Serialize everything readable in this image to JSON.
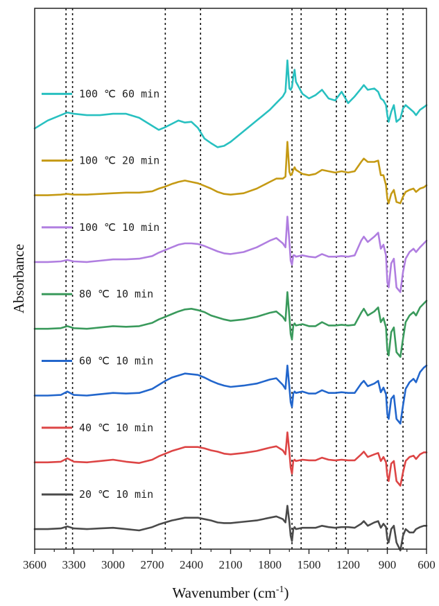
{
  "chart_data": {
    "type": "line",
    "title": "",
    "xlabel": "Wavenumber (cm",
    "xlabel_sup": "-1",
    "xlabel_close": ")",
    "ylabel": "Absorbance",
    "x_reversed": true,
    "xlim": [
      3600,
      600
    ],
    "ylim": [
      -0.3,
      7.8
    ],
    "y_ticks_shown": false,
    "grid": false,
    "legend_placement": "inline-left",
    "x_ticks": [
      3600,
      3300,
      3000,
      2700,
      2400,
      2100,
      1800,
      1500,
      1200,
      900,
      600
    ],
    "x_tick_labels": [
      "3600",
      "3300",
      "3000",
      "2700",
      "2400",
      "2100",
      "1800",
      "1500",
      "1200",
      "900",
      "600"
    ],
    "reference_lines": [
      3360,
      3310,
      2600,
      2330,
      1630,
      1560,
      1290,
      1220,
      900,
      780
    ],
    "x": [
      3600,
      3500,
      3400,
      3350,
      3300,
      3200,
      3100,
      3000,
      2900,
      2800,
      2700,
      2650,
      2600,
      2550,
      2500,
      2450,
      2400,
      2350,
      2300,
      2250,
      2200,
      2150,
      2100,
      2000,
      1900,
      1800,
      1750,
      1700,
      1680,
      1665,
      1650,
      1640,
      1630,
      1620,
      1610,
      1600,
      1550,
      1500,
      1450,
      1400,
      1350,
      1300,
      1250,
      1200,
      1150,
      1100,
      1080,
      1050,
      1000,
      970,
      950,
      930,
      910,
      900,
      890,
      870,
      850,
      830,
      800,
      780,
      760,
      730,
      700,
      680,
      650,
      620,
      600
    ],
    "series": [
      {
        "name": "20 ℃ 10 min",
        "color": "#4a4a4a",
        "values": [
          0,
          0,
          0.01,
          0.04,
          0.01,
          0,
          0.01,
          0.02,
          0,
          -0.02,
          0.03,
          0.07,
          0.1,
          0.13,
          0.15,
          0.17,
          0.17,
          0.17,
          0.15,
          0.13,
          0.1,
          0.09,
          0.09,
          0.11,
          0.13,
          0.17,
          0.19,
          0.15,
          0.1,
          0.35,
          0.1,
          -0.1,
          -0.18,
          0,
          0.03,
          0,
          0.02,
          0.02,
          0.02,
          0.05,
          0.03,
          0.02,
          0.03,
          0.03,
          0.02,
          0.08,
          0.12,
          0.05,
          0.1,
          0.12,
          0.02,
          0.08,
          0.03,
          -0.15,
          -0.2,
          0,
          0.05,
          -0.2,
          -0.32,
          -0.1,
          0,
          -0.05,
          -0.05,
          0,
          0.03,
          0.05,
          0.05
        ]
      },
      {
        "name": "40 ℃ 10 min",
        "color": "#dd4545",
        "values": [
          1,
          1,
          1.01,
          1.06,
          1.01,
          1,
          1.02,
          1.04,
          1.01,
          0.99,
          1.04,
          1.09,
          1.13,
          1.17,
          1.2,
          1.23,
          1.23,
          1.23,
          1.21,
          1.18,
          1.16,
          1.13,
          1.12,
          1.14,
          1.17,
          1.22,
          1.24,
          1.18,
          1.12,
          1.45,
          1.15,
          0.92,
          0.83,
          1.02,
          1.04,
          1.02,
          1.04,
          1.03,
          1.03,
          1.07,
          1.04,
          1.03,
          1.04,
          1.03,
          1.03,
          1.12,
          1.16,
          1.08,
          1.12,
          1.14,
          1.02,
          1.08,
          1,
          0.8,
          0.72,
          0.98,
          1.02,
          0.72,
          0.65,
          0.85,
          1.02,
          1.08,
          1.1,
          1.05,
          1.12,
          1.15,
          1.15
        ]
      },
      {
        "name": "60 ℃ 10 min",
        "color": "#2266cc",
        "values": [
          2,
          2,
          2.01,
          2.06,
          2.01,
          2,
          2.02,
          2.04,
          2.03,
          2.04,
          2.1,
          2.16,
          2.22,
          2.27,
          2.3,
          2.33,
          2.32,
          2.31,
          2.27,
          2.22,
          2.18,
          2.15,
          2.13,
          2.15,
          2.18,
          2.24,
          2.26,
          2.16,
          2.1,
          2.45,
          2.12,
          1.9,
          1.83,
          2.03,
          2.06,
          2.04,
          2.06,
          2.03,
          2.03,
          2.08,
          2.04,
          2.04,
          2.05,
          2.04,
          2.04,
          2.18,
          2.22,
          2.14,
          2.18,
          2.22,
          2.05,
          2.12,
          2.02,
          1.72,
          1.65,
          1.95,
          2,
          1.65,
          1.58,
          1.85,
          2.1,
          2.2,
          2.25,
          2.2,
          2.35,
          2.42,
          2.45
        ]
      },
      {
        "name": "80 ℃ 10 min",
        "color": "#3a9a5c",
        "values": [
          3,
          3,
          3.01,
          3.04,
          3.01,
          3,
          3.02,
          3.04,
          3.03,
          3.04,
          3.09,
          3.14,
          3.18,
          3.22,
          3.26,
          3.29,
          3.3,
          3.28,
          3.25,
          3.2,
          3.17,
          3.14,
          3.12,
          3.14,
          3.18,
          3.24,
          3.26,
          3.18,
          3.12,
          3.55,
          3.18,
          2.92,
          2.84,
          3.05,
          3.08,
          3.05,
          3.07,
          3.04,
          3.04,
          3.1,
          3.05,
          3.05,
          3.06,
          3.05,
          3.06,
          3.24,
          3.3,
          3.2,
          3.26,
          3.32,
          3.1,
          3.16,
          3.02,
          2.68,
          2.6,
          2.95,
          3.02,
          2.65,
          2.58,
          2.85,
          3.1,
          3.2,
          3.25,
          3.2,
          3.32,
          3.38,
          3.42
        ]
      },
      {
        "name": "100 ℃ 10 min",
        "color": "#b07ee0",
        "values": [
          4,
          4,
          4.01,
          4.03,
          4.01,
          4,
          4.02,
          4.04,
          4.04,
          4.05,
          4.09,
          4.14,
          4.18,
          4.22,
          4.26,
          4.28,
          4.28,
          4.27,
          4.24,
          4.2,
          4.16,
          4.13,
          4.12,
          4.15,
          4.22,
          4.32,
          4.36,
          4.28,
          4.22,
          4.68,
          4.3,
          4.02,
          3.96,
          4.1,
          4.1,
          4.08,
          4.1,
          4.08,
          4.07,
          4.12,
          4.08,
          4.08,
          4.09,
          4.08,
          4.1,
          4.32,
          4.38,
          4.3,
          4.38,
          4.44,
          4.2,
          4.26,
          4.1,
          3.7,
          3.62,
          3.98,
          4.05,
          3.62,
          3.55,
          3.85,
          4.05,
          4.15,
          4.2,
          4.15,
          4.22,
          4.28,
          4.32
        ]
      },
      {
        "name": "100 ℃ 20 min",
        "color": "#c59a14",
        "values": [
          5,
          5,
          5.01,
          5.02,
          5.01,
          5.01,
          5.02,
          5.03,
          5.04,
          5.04,
          5.06,
          5.1,
          5.13,
          5.17,
          5.2,
          5.22,
          5.2,
          5.18,
          5.14,
          5.1,
          5.05,
          5.02,
          5.01,
          5.03,
          5.1,
          5.2,
          5.25,
          5.25,
          5.28,
          5.8,
          5.35,
          5.3,
          5.32,
          5.38,
          5.42,
          5.38,
          5.32,
          5.3,
          5.32,
          5.38,
          5.36,
          5.34,
          5.36,
          5.34,
          5.36,
          5.5,
          5.55,
          5.5,
          5.5,
          5.52,
          5.3,
          5.3,
          5.15,
          4.95,
          4.88,
          5.02,
          5.08,
          4.9,
          4.88,
          4.98,
          5.05,
          5.08,
          5.1,
          5.05,
          5.1,
          5.12,
          5.15
        ]
      },
      {
        "name": "100 ℃ 60 min",
        "color": "#28c0c0",
        "values": [
          6,
          6.12,
          6.2,
          6.24,
          6.22,
          6.2,
          6.2,
          6.22,
          6.22,
          6.16,
          6.04,
          5.98,
          6.02,
          6.07,
          6.12,
          6.09,
          6.1,
          6.01,
          5.85,
          5.78,
          5.72,
          5.74,
          5.8,
          5.96,
          6.12,
          6.28,
          6.38,
          6.48,
          6.55,
          7.02,
          6.6,
          6.58,
          6.62,
          6.78,
          6.88,
          6.7,
          6.52,
          6.45,
          6.5,
          6.58,
          6.45,
          6.42,
          6.55,
          6.38,
          6.48,
          6.6,
          6.65,
          6.58,
          6.6,
          6.55,
          6.45,
          6.42,
          6.35,
          6.2,
          6.1,
          6.25,
          6.35,
          6.1,
          6.15,
          6.3,
          6.35,
          6.3,
          6.25,
          6.2,
          6.28,
          6.32,
          6.35
        ]
      }
    ]
  }
}
